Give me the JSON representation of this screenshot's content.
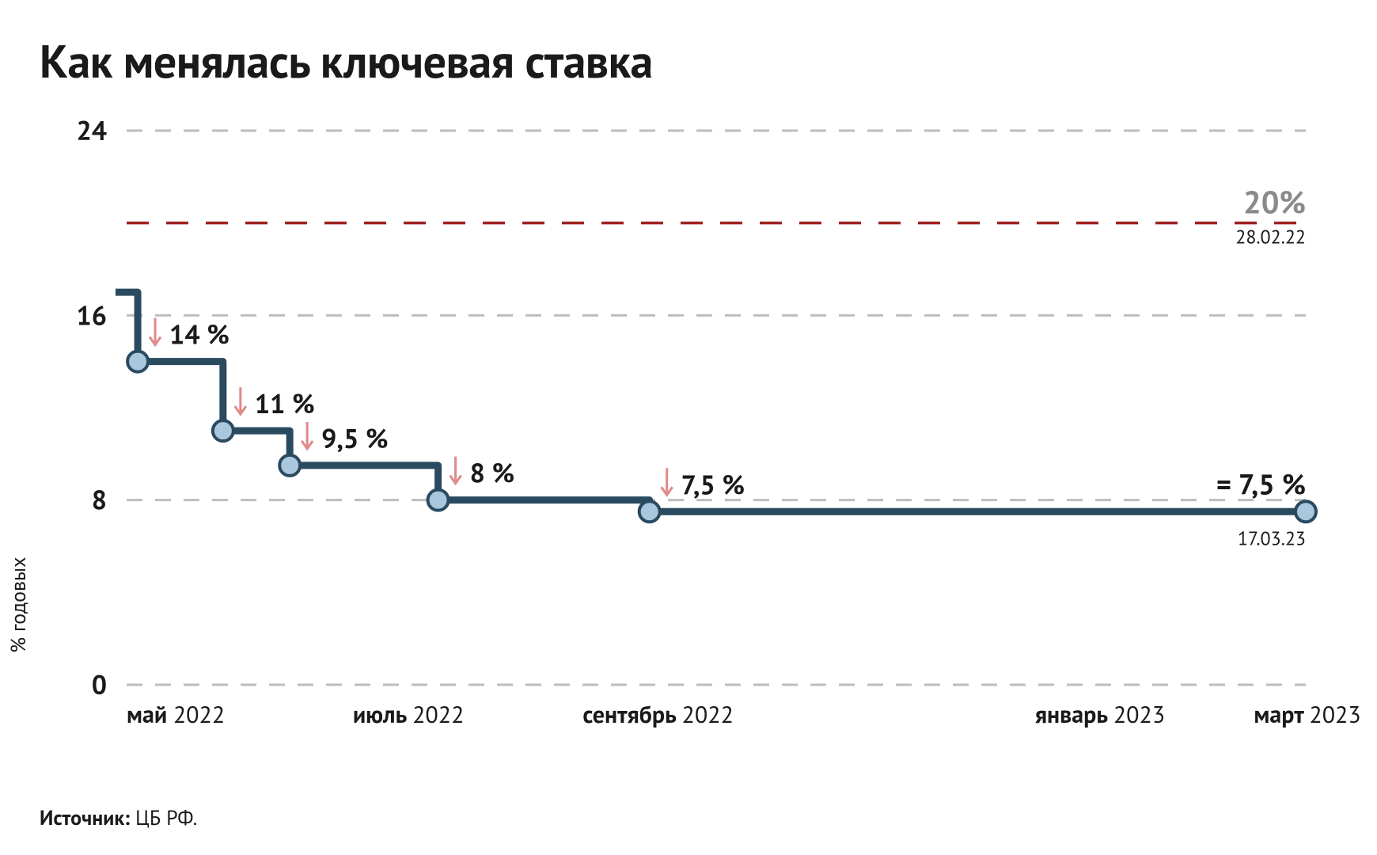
{
  "title": "Как менялась ключевая ставка",
  "y_axis_label": "% годовых",
  "source_prefix": "Источник:",
  "source_name": "ЦБ РФ.",
  "chart": {
    "type": "step-line",
    "background_color": "#ffffff",
    "line_color": "#2a4a5f",
    "dot_fill": "#aac7de",
    "dot_stroke": "#2a4a5f",
    "grid_color": "#bdbdbd",
    "reference_line_color": "#a02020",
    "reference_label_color": "#8a8a8a",
    "arrow_color": "#e08a8a",
    "ylim": [
      0,
      24
    ],
    "yticks": [
      0,
      8,
      16,
      24
    ],
    "x_start": 0,
    "x_end": 318,
    "x_labels": [
      {
        "x": 0,
        "month": "май",
        "year": "2022"
      },
      {
        "x": 61,
        "month": "июль",
        "year": "2022"
      },
      {
        "x": 123,
        "month": "сентябрь",
        "year": "2022"
      },
      {
        "x": 245,
        "month": "январь",
        "year": "2023"
      },
      {
        "x": 304,
        "month": "март",
        "year": "2023"
      }
    ],
    "initial": {
      "x": -3,
      "value": 17
    },
    "points": [
      {
        "x": 3,
        "value": 14,
        "label": "14 %",
        "arrow": true
      },
      {
        "x": 26,
        "value": 11,
        "label": "11 %",
        "arrow": true
      },
      {
        "x": 44,
        "value": 9.5,
        "label": "9,5 %",
        "arrow": true
      },
      {
        "x": 84,
        "value": 8,
        "label": "8 %",
        "arrow": true
      },
      {
        "x": 141,
        "value": 7.5,
        "label": "7,5 %",
        "arrow": true
      },
      {
        "x": 318,
        "value": 7.5,
        "label": "7,5 %",
        "arrow": false,
        "equals": true
      }
    ],
    "reference": {
      "value": 20,
      "label": "20%",
      "date": "28.02.22"
    },
    "final_date": "17.03.23"
  }
}
